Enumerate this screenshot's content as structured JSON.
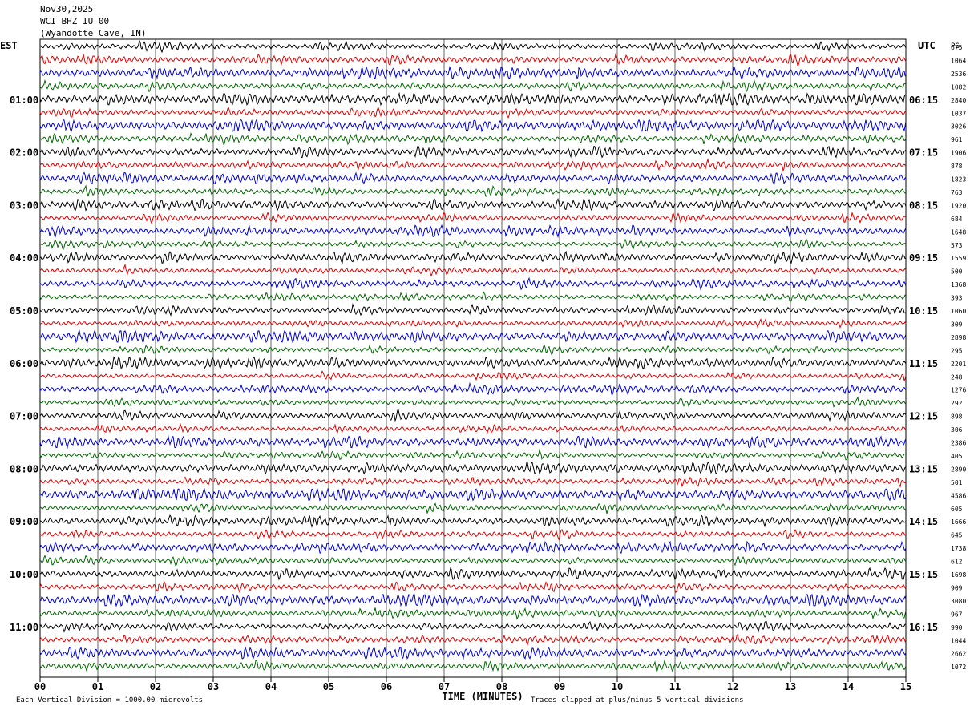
{
  "header": {
    "date": "Nov30,2025",
    "station": "WCI BHZ IU 00",
    "location": "(Wyandotte Cave, IN)"
  },
  "chart_data": {
    "type": "line",
    "title": "",
    "xlabel": "TIME (MINUTES)",
    "left_timezone": "EST",
    "right_timezone": "UTC",
    "right_column_label": "PG",
    "x_ticks": [
      "00",
      "01",
      "02",
      "03",
      "04",
      "05",
      "06",
      "07",
      "08",
      "09",
      "10",
      "11",
      "12",
      "13",
      "14",
      "15"
    ],
    "xlim": [
      0,
      15
    ],
    "left_hour_labels": [
      {
        "row": 4,
        "label": "01:00"
      },
      {
        "row": 8,
        "label": "02:00"
      },
      {
        "row": 12,
        "label": "03:00"
      },
      {
        "row": 16,
        "label": "04:00"
      },
      {
        "row": 20,
        "label": "05:00"
      },
      {
        "row": 24,
        "label": "06:00"
      },
      {
        "row": 28,
        "label": "07:00"
      },
      {
        "row": 32,
        "label": "08:00"
      },
      {
        "row": 36,
        "label": "09:00"
      },
      {
        "row": 40,
        "label": "10:00"
      },
      {
        "row": 44,
        "label": "11:00"
      }
    ],
    "right_hour_labels": [
      {
        "row": 4,
        "label": "06:15"
      },
      {
        "row": 8,
        "label": "07:15"
      },
      {
        "row": 12,
        "label": "08:15"
      },
      {
        "row": 16,
        "label": "09:15"
      },
      {
        "row": 20,
        "label": "10:15"
      },
      {
        "row": 24,
        "label": "11:15"
      },
      {
        "row": 28,
        "label": "12:15"
      },
      {
        "row": 32,
        "label": "13:15"
      },
      {
        "row": 36,
        "label": "14:15"
      },
      {
        "row": 40,
        "label": "15:15"
      },
      {
        "row": 44,
        "label": "16:15"
      }
    ],
    "trace_colors": [
      "#000000",
      "#dd0000",
      "#0000cc",
      "#006600"
    ],
    "row_values": [
      "675",
      "1064",
      "2536",
      "1082",
      "2840",
      "1037",
      "3026",
      "961",
      "1906",
      "878",
      "1823",
      "763",
      "1920",
      "684",
      "1648",
      "573",
      "1559",
      "500",
      "1368",
      "393",
      "1060",
      "309",
      "2898",
      "295",
      "2201",
      "248",
      "1276",
      "292",
      "898",
      "306",
      "2386",
      "405",
      "2890",
      "501",
      "4586",
      "605",
      "1666",
      "645",
      "1738",
      "612",
      "1698",
      "909",
      "3080",
      "967",
      "990",
      "1044",
      "2662",
      "1072"
    ],
    "footer_left": "Each Vertical Division = 1000.00 microvolts",
    "footer_right": "Traces clipped at plus/minus 5 vertical divisions"
  }
}
